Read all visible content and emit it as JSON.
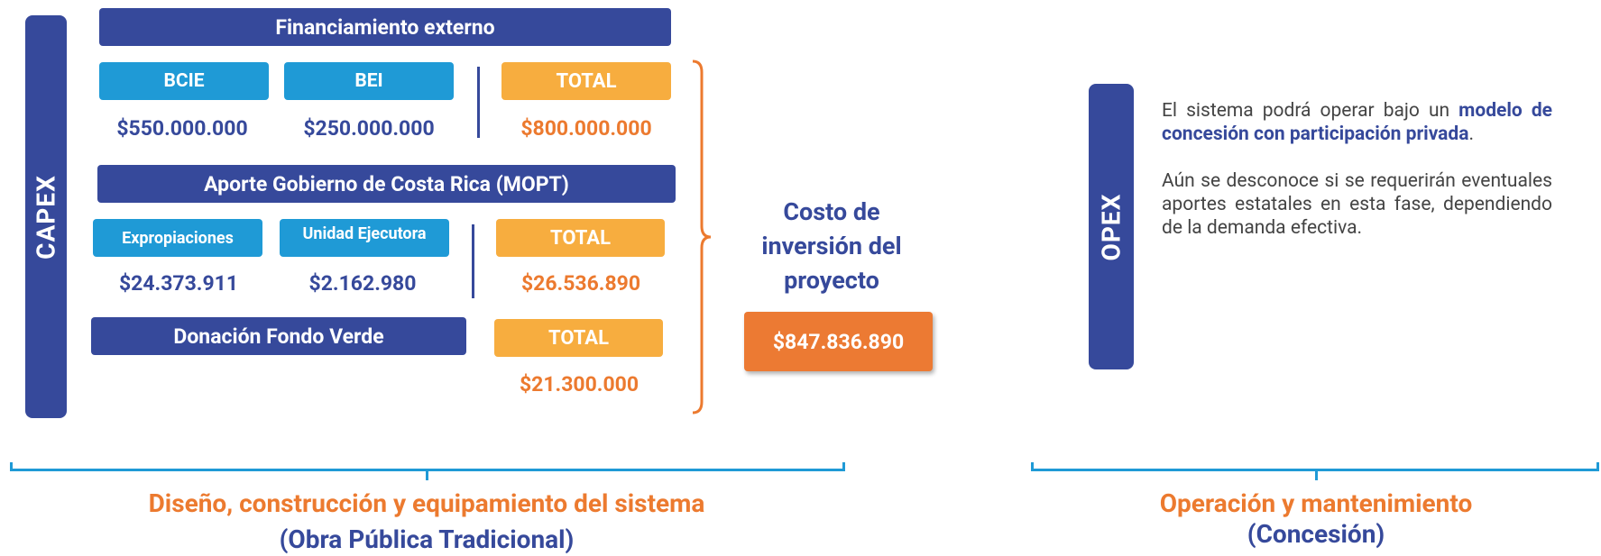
{
  "capex": {
    "label": "CAPEX",
    "financiamiento": {
      "title": "Financiamiento externo",
      "items": [
        {
          "label": "BCIE",
          "amount": "$550.000.000"
        },
        {
          "label": "BEI",
          "amount": "$250.000.000"
        }
      ],
      "total_label": "TOTAL",
      "total": "$800.000.000"
    },
    "aporte": {
      "title": "Aporte Gobierno de Costa Rica (MOPT)",
      "items": [
        {
          "label": "Expropiaciones",
          "amount": "$24.373.911"
        },
        {
          "label": "Unidad Ejecutora",
          "amount": "$2.162.980"
        }
      ],
      "total_label": "TOTAL",
      "total": "$26.536.890"
    },
    "donacion": {
      "title": "Donación Fondo Verde",
      "total_label": "TOTAL",
      "total": "$21.300.000"
    },
    "costo": {
      "label": "Costo de inversión del proyecto",
      "total": "$847.836.890"
    },
    "caption": {
      "line1": "Diseño, construcción y equipamiento del sistema",
      "line2": "(Obra Pública Tradicional)"
    }
  },
  "opex": {
    "label": "OPEX",
    "paragraph1": {
      "text1": "El sistema podrá operar bajo un ",
      "bold": "modelo de concesión con participación privada",
      "text2": "."
    },
    "paragraph2": "Aún se desconoce si se requerirán eventuales aportes estatales en esta fase, dependiendo de la demanda efectiva.",
    "caption": {
      "line1": "Operación y mantenimiento",
      "line2": "(Concesión)"
    }
  }
}
